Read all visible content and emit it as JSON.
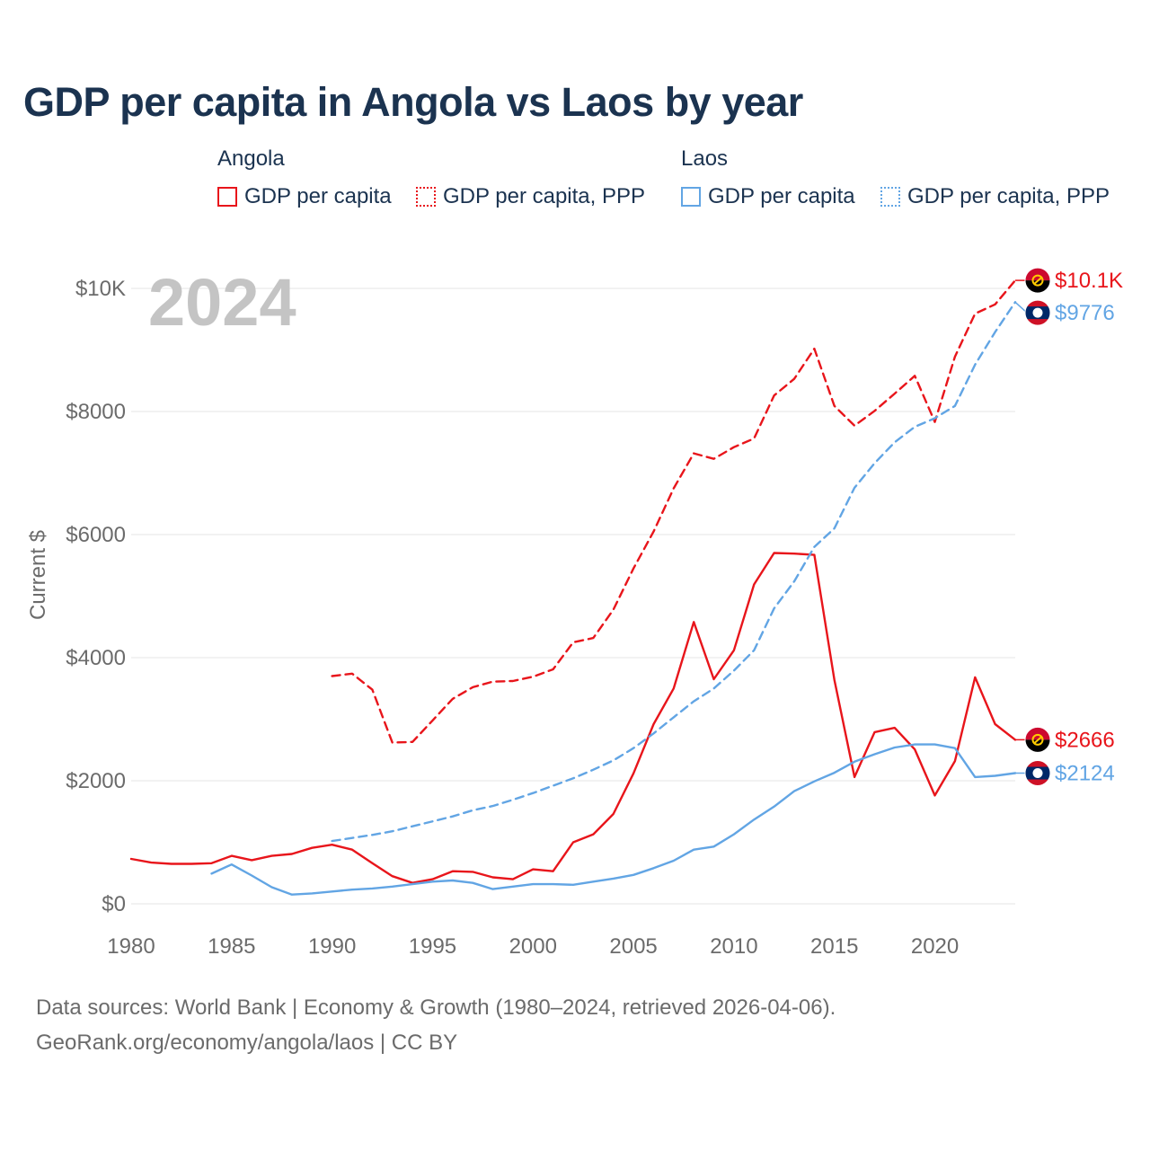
{
  "title": "GDP per capita in Angola vs Laos by year",
  "legend": {
    "angola_title": "Angola",
    "laos_title": "Laos",
    "angola_gdp": "GDP per capita",
    "angola_ppp": "GDP per capita, PPP",
    "laos_gdp": "GDP per capita",
    "laos_ppp": "GDP per capita, PPP"
  },
  "year_watermark": "2024",
  "footer": {
    "line1": "Data sources: World Bank | Economy & Growth (1980–2024, retrieved 2026-04-06).",
    "line2": "GeoRank.org/economy/angola/laos | CC BY"
  },
  "colors": {
    "angola": "#e8151b",
    "laos": "#62a5e4",
    "grid": "#e6e6e6",
    "axis_text": "#6b6b6b"
  },
  "chart_data": {
    "type": "line",
    "ylabel": "Current $",
    "xlim": [
      1980,
      2024
    ],
    "ylim": [
      0,
      10500
    ],
    "yticks": [
      {
        "value": 0,
        "label": "$0"
      },
      {
        "value": 2000,
        "label": "$2000"
      },
      {
        "value": 4000,
        "label": "$4000"
      },
      {
        "value": 6000,
        "label": "$6000"
      },
      {
        "value": 8000,
        "label": "$8000"
      },
      {
        "value": 10000,
        "label": "$10K"
      }
    ],
    "xticks": [
      {
        "value": 1980,
        "label": "1980"
      },
      {
        "value": 1985,
        "label": "1985"
      },
      {
        "value": 1990,
        "label": "1990"
      },
      {
        "value": 1995,
        "label": "1995"
      },
      {
        "value": 2000,
        "label": "2000"
      },
      {
        "value": 2005,
        "label": "2005"
      },
      {
        "value": 2010,
        "label": "2010"
      },
      {
        "value": 2015,
        "label": "2015"
      },
      {
        "value": 2020,
        "label": "2020"
      }
    ],
    "series": [
      {
        "name": "Angola GDP per capita",
        "country": "angola",
        "dashed": false,
        "end_label": "$2666",
        "x": [
          1980,
          1981,
          1982,
          1983,
          1984,
          1985,
          1986,
          1987,
          1988,
          1989,
          1990,
          1991,
          1992,
          1993,
          1994,
          1995,
          1996,
          1997,
          1998,
          1999,
          2000,
          2001,
          2002,
          2003,
          2004,
          2005,
          2006,
          2007,
          2008,
          2009,
          2010,
          2011,
          2012,
          2013,
          2014,
          2015,
          2016,
          2017,
          2018,
          2019,
          2020,
          2021,
          2022,
          2023,
          2024
        ],
        "values": [
          730,
          670,
          650,
          650,
          660,
          780,
          710,
          780,
          810,
          910,
          960,
          880,
          660,
          450,
          340,
          400,
          530,
          520,
          430,
          400,
          560,
          530,
          1000,
          1130,
          1460,
          2120,
          2920,
          3500,
          4580,
          3650,
          4120,
          5190,
          5700,
          5690,
          5670,
          3640,
          2060,
          2790,
          2860,
          2510,
          1760,
          2320,
          3680,
          2920,
          2666
        ]
      },
      {
        "name": "Angola GDP per capita, PPP",
        "country": "angola",
        "dashed": true,
        "end_label": "$10.1K",
        "x": [
          1990,
          1991,
          1992,
          1993,
          1994,
          1995,
          1996,
          1997,
          1998,
          1999,
          2000,
          2001,
          2002,
          2003,
          2004,
          2005,
          2006,
          2007,
          2008,
          2009,
          2010,
          2011,
          2012,
          2013,
          2014,
          2015,
          2016,
          2017,
          2018,
          2019,
          2020,
          2021,
          2022,
          2023,
          2024
        ],
        "values": [
          3700,
          3740,
          3480,
          2620,
          2630,
          2980,
          3330,
          3520,
          3610,
          3620,
          3690,
          3810,
          4250,
          4320,
          4780,
          5450,
          6050,
          6750,
          7320,
          7230,
          7420,
          7560,
          8260,
          8530,
          9020,
          8090,
          7770,
          8010,
          8290,
          8580,
          7830,
          8890,
          9590,
          9740,
          10130
        ]
      },
      {
        "name": "Laos GDP per capita",
        "country": "laos",
        "dashed": false,
        "end_label": "$2124",
        "x": [
          1984,
          1985,
          1986,
          1987,
          1988,
          1989,
          1990,
          1991,
          1992,
          1993,
          1994,
          1995,
          1996,
          1997,
          1998,
          1999,
          2000,
          2001,
          2002,
          2003,
          2004,
          2005,
          2006,
          2007,
          2008,
          2009,
          2010,
          2011,
          2012,
          2013,
          2014,
          2015,
          2016,
          2017,
          2018,
          2019,
          2020,
          2021,
          2022,
          2023,
          2024
        ],
        "values": [
          490,
          640,
          460,
          270,
          150,
          170,
          200,
          230,
          250,
          280,
          320,
          360,
          380,
          340,
          240,
          280,
          320,
          320,
          310,
          360,
          410,
          470,
          580,
          700,
          880,
          930,
          1130,
          1370,
          1580,
          1830,
          1990,
          2130,
          2310,
          2430,
          2540,
          2590,
          2590,
          2530,
          2060,
          2080,
          2124
        ]
      },
      {
        "name": "Laos GDP per capita, PPP",
        "country": "laos",
        "dashed": true,
        "end_label": "$9776",
        "x": [
          1990,
          1991,
          1992,
          1993,
          1994,
          1995,
          1996,
          1997,
          1998,
          1999,
          2000,
          2001,
          2002,
          2003,
          2004,
          2005,
          2006,
          2007,
          2008,
          2009,
          2010,
          2011,
          2012,
          2013,
          2014,
          2015,
          2016,
          2017,
          2018,
          2019,
          2020,
          2021,
          2022,
          2023,
          2024
        ],
        "values": [
          1020,
          1070,
          1120,
          1180,
          1260,
          1340,
          1420,
          1520,
          1590,
          1690,
          1800,
          1920,
          2040,
          2180,
          2330,
          2530,
          2770,
          3030,
          3290,
          3500,
          3790,
          4120,
          4800,
          5240,
          5800,
          6100,
          6760,
          7160,
          7500,
          7750,
          7890,
          8090,
          8760,
          9290,
          9776
        ]
      }
    ]
  }
}
